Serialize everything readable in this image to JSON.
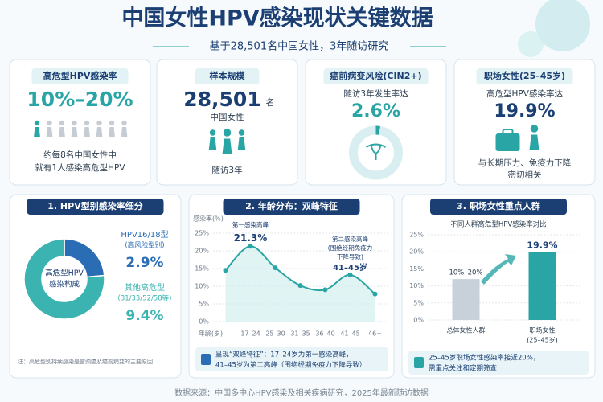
{
  "header": {
    "title": "中国女性HPV感染现状关键数据",
    "subtitle": "基于28,501名中国女性，3年随访研究"
  },
  "stats": [
    {
      "title": "高危型HPV感染率",
      "value": "10%–20%",
      "lines": [
        "约每8名中国女性中",
        "就有1人感染高危型HPV"
      ]
    },
    {
      "title": "样本规模",
      "value": "28,501",
      "unit": "名",
      "lines": [
        "中国女性",
        "随访3年"
      ]
    },
    {
      "title": "癌前病变风险(CIN2+)",
      "lines": [
        "随访3年发生率达"
      ],
      "values": [
        2.6
      ],
      "value_labels": [
        "2.6%"
      ]
    },
    {
      "title": "职场女性(25–45岁)",
      "lines": [
        "高危型HPV感染率达"
      ],
      "value": "19.9%",
      "notes": [
        "与长期压力、免疫力下降",
        "密切相关"
      ]
    }
  ],
  "chart_data": [
    {
      "type": "pie",
      "title": "1. HPV型别感染率细分",
      "center_label": [
        "高危型HPV",
        "感染构成"
      ],
      "categories": [
        [
          "HPV16/18型",
          "(高风险型别)"
        ],
        [
          "其他高危型",
          "(31/33/52/58等)"
        ]
      ],
      "values": [
        2.9,
        9.4
      ],
      "value_labels": [
        "2.9%",
        "9.4%"
      ],
      "colors": [
        "#2a6db5",
        "#3bb3b0"
      ],
      "note": "注：高危型别持续感染是宫颈癌及癌前病变的主要原因"
    },
    {
      "type": "line",
      "title": "2. 年龄分布：双峰特征",
      "ylabel": "感染率(%)",
      "xlabel": "年龄(岁)",
      "categories": [
        null,
        "17–24",
        "25–30",
        "31–35",
        "36–40",
        "41–45",
        "46+"
      ],
      "values": [
        14.5,
        21.3,
        15.2,
        10.2,
        9,
        13.2,
        7.8
      ],
      "value_labels": [
        null,
        "21.3%",
        null,
        null,
        null,
        null,
        null
      ],
      "color": "#2aa5a5",
      "ylim": [
        0,
        25
      ],
      "yticks": [
        {
          "value": 0,
          "label": "0%"
        },
        {
          "value": 5,
          "label": "5%"
        },
        {
          "value": 10,
          "label": "10%"
        },
        {
          "value": 15,
          "label": "15%"
        },
        {
          "value": 20,
          "label": "20%"
        },
        {
          "value": 25,
          "label": "25%"
        }
      ],
      "annotations": [
        [
          "第一感染高峰"
        ],
        [
          "第二感染高峰",
          "(围绝经期免疫力",
          "下降导致)",
          "41–45岁"
        ]
      ],
      "summary": [
        "呈现“双峰特征”：17–24岁为第一感染高峰，",
        "41–45岁为第二高峰（围绝经期免疫力下降导致）"
      ]
    },
    {
      "type": "bar",
      "title": "3. 职场女性重点人群",
      "subtitle": "不同人群高危型HPV感染率对比",
      "categories": [
        [
          "总体女性人群"
        ],
        [
          "职场女性",
          "(25–45岁)"
        ]
      ],
      "values": [
        12,
        19.9
      ],
      "value_labels": [
        "10%–20%",
        "19.9%"
      ],
      "colors": [
        "#c8d0da",
        "#2aa5a5"
      ],
      "ylim": [
        0,
        25
      ],
      "yticks": [
        {
          "value": 0,
          "label": "0%"
        },
        {
          "value": 5,
          "label": "5%"
        },
        {
          "value": 10,
          "label": "10%"
        },
        {
          "value": 15,
          "label": "15%"
        },
        {
          "value": 20,
          "label": "20%"
        },
        {
          "value": 25,
          "label": "25%"
        }
      ],
      "summary": [
        "25–45岁职场女性感染率接近20%，",
        "需重点关注和定期筛查"
      ]
    }
  ],
  "footer": "数据来源：中国多中心HPV感染及相关疾病研究，2025年最新随访数据"
}
